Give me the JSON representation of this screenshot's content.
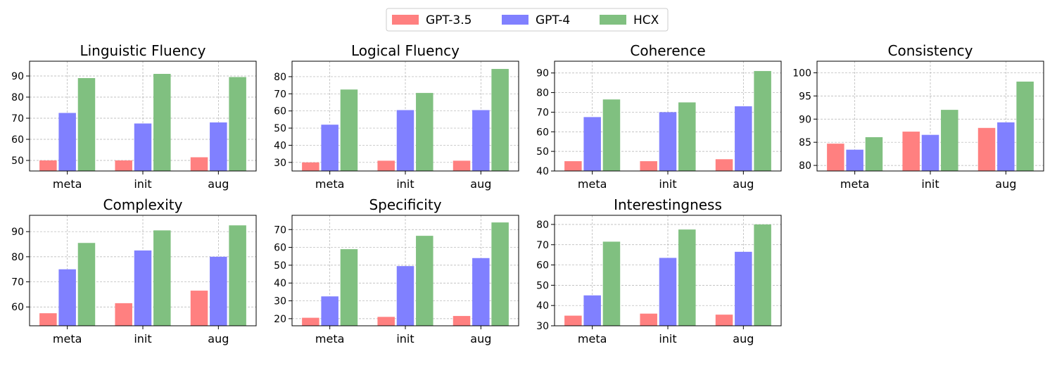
{
  "legend": {
    "placement": "top-center",
    "entries": [
      {
        "name": "GPT-3.5",
        "color": "#ff8080"
      },
      {
        "name": "GPT-4",
        "color": "#8080ff"
      },
      {
        "name": "HCX",
        "color": "#80c080"
      }
    ]
  },
  "chart_data": [
    {
      "type": "bar",
      "title": "Linguistic Fluency",
      "categories": [
        "meta",
        "init",
        "aug"
      ],
      "series": [
        {
          "name": "GPT-3.5",
          "values": [
            50,
            50,
            51.5
          ]
        },
        {
          "name": "GPT-4",
          "values": [
            72.5,
            67.5,
            68
          ]
        },
        {
          "name": "HCX",
          "values": [
            89,
            91,
            89.5
          ]
        }
      ],
      "ylim": [
        45,
        97
      ],
      "yticks": [
        50,
        60,
        70,
        80,
        90
      ],
      "grid": true
    },
    {
      "type": "bar",
      "title": "Logical Fluency",
      "categories": [
        "meta",
        "init",
        "aug"
      ],
      "series": [
        {
          "name": "GPT-3.5",
          "values": [
            30,
            31,
            31
          ]
        },
        {
          "name": "GPT-4",
          "values": [
            52,
            60.5,
            60.5
          ]
        },
        {
          "name": "HCX",
          "values": [
            72.5,
            70.5,
            84.5
          ]
        }
      ],
      "ylim": [
        25,
        89
      ],
      "yticks": [
        30,
        40,
        50,
        60,
        70,
        80
      ],
      "grid": true
    },
    {
      "type": "bar",
      "title": "Coherence",
      "categories": [
        "meta",
        "init",
        "aug"
      ],
      "series": [
        {
          "name": "GPT-3.5",
          "values": [
            45,
            45,
            46
          ]
        },
        {
          "name": "GPT-4",
          "values": [
            67.5,
            70,
            73
          ]
        },
        {
          "name": "HCX",
          "values": [
            76.5,
            75,
            91
          ]
        }
      ],
      "ylim": [
        40,
        96
      ],
      "yticks": [
        40,
        50,
        60,
        70,
        80,
        90
      ],
      "grid": true
    },
    {
      "type": "bar",
      "title": "Consistency",
      "categories": [
        "meta",
        "init",
        "aug"
      ],
      "series": [
        {
          "name": "GPT-3.5",
          "values": [
            84.7,
            87.3,
            88.1
          ]
        },
        {
          "name": "GPT-4",
          "values": [
            83.4,
            86.6,
            89.3
          ]
        },
        {
          "name": "HCX",
          "values": [
            86.1,
            92,
            98.1
          ]
        }
      ],
      "ylim": [
        78.8,
        102.5
      ],
      "yticks": [
        80,
        85,
        90,
        95,
        100
      ],
      "grid": true
    },
    {
      "type": "bar",
      "title": "Complexity",
      "categories": [
        "meta",
        "init",
        "aug"
      ],
      "series": [
        {
          "name": "GPT-3.5",
          "values": [
            57.5,
            61.5,
            66.5
          ]
        },
        {
          "name": "GPT-4",
          "values": [
            75,
            82.5,
            80
          ]
        },
        {
          "name": "HCX",
          "values": [
            85.5,
            90.5,
            92.5
          ]
        }
      ],
      "ylim": [
        52.5,
        96.5
      ],
      "yticks": [
        60,
        70,
        80,
        90
      ],
      "grid": true
    },
    {
      "type": "bar",
      "title": "Specificity",
      "categories": [
        "meta",
        "init",
        "aug"
      ],
      "series": [
        {
          "name": "GPT-3.5",
          "values": [
            20.5,
            21,
            21.5
          ]
        },
        {
          "name": "GPT-4",
          "values": [
            32.5,
            49.5,
            54
          ]
        },
        {
          "name": "HCX",
          "values": [
            59,
            66.5,
            74
          ]
        }
      ],
      "ylim": [
        16,
        78
      ],
      "yticks": [
        20,
        30,
        40,
        50,
        60,
        70
      ],
      "grid": true
    },
    {
      "type": "bar",
      "title": "Interestingness",
      "categories": [
        "meta",
        "init",
        "aug"
      ],
      "series": [
        {
          "name": "GPT-3.5",
          "values": [
            35,
            36,
            35.5
          ]
        },
        {
          "name": "GPT-4",
          "values": [
            45,
            63.5,
            66.5
          ]
        },
        {
          "name": "HCX",
          "values": [
            71.5,
            77.5,
            80
          ]
        }
      ],
      "ylim": [
        30,
        84.5
      ],
      "yticks": [
        30,
        40,
        50,
        60,
        70,
        80
      ],
      "grid": true
    }
  ]
}
